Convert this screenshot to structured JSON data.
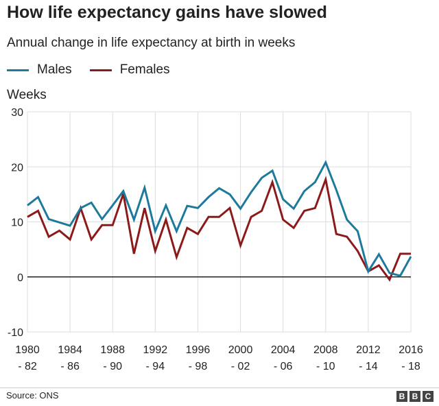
{
  "header": {
    "title": "How life expectancy gains have slowed",
    "subtitle": "Annual change in life expectancy at birth in weeks"
  },
  "legend": {
    "males_label": "Males",
    "females_label": "Females"
  },
  "footer": {
    "source": "Source: ONS",
    "logo": [
      "B",
      "B",
      "C"
    ]
  },
  "colors": {
    "males": "#1d7a9c",
    "females": "#8c1a1a",
    "grid": "#dddddd",
    "zero_line": "#222222"
  },
  "chart_data": {
    "type": "line",
    "ylabel": "Weeks",
    "ylim": [
      -10,
      30
    ],
    "yticks": [
      -10,
      0,
      10,
      20,
      30
    ],
    "xlabel": "",
    "grid": true,
    "legend_position": "top-left",
    "x_tick_labels": [
      [
        "1980",
        "- 82"
      ],
      [
        "1984",
        "- 86"
      ],
      [
        "1988",
        "- 90"
      ],
      [
        "1992",
        "- 94"
      ],
      [
        "1996",
        "- 98"
      ],
      [
        "2000",
        "- 02"
      ],
      [
        "2004",
        "- 06"
      ],
      [
        "2008",
        "- 10"
      ],
      [
        "2012",
        "- 14"
      ],
      [
        "2016",
        "- 18"
      ]
    ],
    "categories": [
      "1980-82",
      "1981-83",
      "1982-84",
      "1983-85",
      "1984-86",
      "1985-87",
      "1986-88",
      "1987-89",
      "1988-90",
      "1989-91",
      "1990-92",
      "1991-93",
      "1992-94",
      "1993-95",
      "1994-96",
      "1995-97",
      "1996-98",
      "1997-99",
      "1998-00",
      "1999-01",
      "2000-02",
      "2001-03",
      "2002-04",
      "2003-05",
      "2004-06",
      "2005-07",
      "2006-08",
      "2007-09",
      "2008-10",
      "2009-11",
      "2010-12",
      "2011-13",
      "2012-14",
      "2013-15",
      "2014-16",
      "2015-17",
      "2016-18"
    ],
    "series": [
      {
        "name": "Males",
        "values": [
          13,
          14.5,
          10.5,
          9.9,
          9.3,
          12.5,
          13.5,
          10.5,
          13,
          15.6,
          10.4,
          16.2,
          8.3,
          13,
          8.3,
          12.9,
          12.5,
          14.5,
          16.1,
          15,
          12.4,
          15.4,
          18,
          19.3,
          14.1,
          12.4,
          15.6,
          17.2,
          20.8,
          15.8,
          10.4,
          8.3,
          1,
          4.1,
          0.7,
          0.2,
          3.7
        ]
      },
      {
        "name": "Females",
        "values": [
          10.9,
          12,
          7.3,
          8.4,
          6.8,
          12.5,
          6.8,
          9.4,
          9.4,
          15.1,
          4.2,
          12.5,
          4.7,
          10.4,
          3.6,
          8.9,
          7.8,
          10.9,
          10.9,
          12.5,
          5.7,
          10.9,
          12,
          17.2,
          10.4,
          8.9,
          12,
          12.5,
          17.7,
          7.8,
          7.3,
          4.7,
          1,
          2.1,
          -0.5,
          4.2,
          4.2
        ]
      }
    ]
  }
}
